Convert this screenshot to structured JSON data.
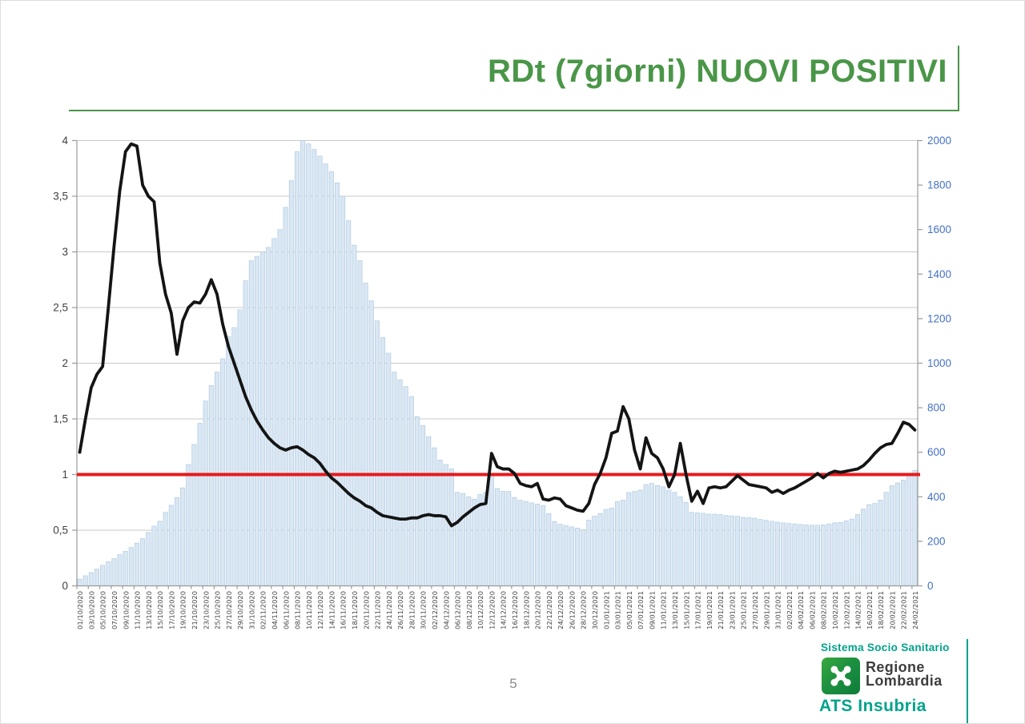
{
  "title": {
    "text": "RDt (7giorni) NUOVI POSITIVI"
  },
  "page": {
    "number": "5"
  },
  "footer_logo": {
    "line1": "Sistema Socio Sanitario",
    "brand": "Regione<br>Lombardia",
    "brand_line1": "Regione",
    "brand_line2": "Lombardia",
    "line2": "ATS Insubria"
  },
  "colors": {
    "title_green": "#4a9648",
    "teal": "#00a38b",
    "bar_fill": "#dae7f3",
    "bar_stroke": "#b3cde3",
    "rdt_line": "#141414",
    "threshold": "#e8191c",
    "grid": "#c8c8c8",
    "axis": "#9a9a9a",
    "left_axis_text": "#404040",
    "right_axis_text": "#4472c4",
    "x_label_text": "#3f3f3f"
  },
  "chart_data": {
    "type": "bar",
    "combo": [
      "bar",
      "line"
    ],
    "title": "",
    "xlabel": "",
    "ylabel_left": "",
    "ylabel_right": "",
    "grid": true,
    "legend": "none",
    "left_axis": {
      "min": 0,
      "max": 4,
      "step": 0.5,
      "tick_labels": [
        "0",
        "0,5",
        "1",
        "1,5",
        "2",
        "2,5",
        "3",
        "3,5",
        "4"
      ]
    },
    "right_axis": {
      "min": 0,
      "max": 2000,
      "step": 200,
      "tick_labels": [
        "0",
        "200",
        "400",
        "600",
        "800",
        "1000",
        "1200",
        "1400",
        "1600",
        "1800",
        "2000"
      ]
    },
    "threshold_line": {
      "value": 1.0,
      "axis": "left"
    },
    "x_start_date": "01/10/2020",
    "x_end_date": "24/02/2021",
    "x_label_every_n_days": 2,
    "x_labels": [
      "01/10/2020",
      "03/10/2020",
      "05/10/2020",
      "07/10/2020",
      "09/10/2020",
      "11/10/2020",
      "13/10/2020",
      "15/10/2020",
      "17/10/2020",
      "19/10/2020",
      "21/10/2020",
      "23/10/2020",
      "25/10/2020",
      "27/10/2020",
      "29/10/2020",
      "31/10/2020",
      "02/11/2020",
      "04/11/2020",
      "06/11/2020",
      "08/11/2020",
      "10/11/2020",
      "12/11/2020",
      "14/11/2020",
      "16/11/2020",
      "18/11/2020",
      "20/11/2020",
      "22/11/2020",
      "24/11/2020",
      "26/11/2020",
      "28/11/2020",
      "30/11/2020",
      "02/12/2020",
      "04/12/2020",
      "06/12/2020",
      "08/12/2020",
      "10/12/2020",
      "12/12/2020",
      "14/12/2020",
      "16/12/2020",
      "18/12/2020",
      "20/12/2020",
      "22/12/2020",
      "24/12/2020",
      "26/12/2020",
      "28/12/2020",
      "30/12/2020",
      "01/01/2021",
      "03/01/2021",
      "05/01/2021",
      "07/01/2021",
      "09/01/2021",
      "11/01/2021",
      "13/01/2021",
      "15/01/2021",
      "17/01/2021",
      "19/01/2021",
      "21/01/2021",
      "23/01/2021",
      "25/01/2021",
      "27/01/2021",
      "29/01/2021",
      "31/01/2021",
      "02/02/2021",
      "04/02/2021",
      "06/02/2021",
      "08/02/2021",
      "10/02/2021",
      "12/02/2021",
      "14/02/2021",
      "16/02/2021",
      "18/02/2021",
      "20/02/2021",
      "22/02/2021",
      "24/02/2021"
    ],
    "series": [
      {
        "name": "nuovi-positivi-bars",
        "type": "bar",
        "axis": "right",
        "values": [
          30,
          45,
          60,
          75,
          92,
          108,
          122,
          140,
          155,
          172,
          192,
          212,
          240,
          268,
          290,
          330,
          362,
          396,
          440,
          545,
          635,
          730,
          830,
          900,
          960,
          1020,
          1120,
          1160,
          1240,
          1370,
          1460,
          1480,
          1500,
          1520,
          1560,
          1600,
          1700,
          1820,
          1950,
          2000,
          1985,
          1960,
          1930,
          1895,
          1860,
          1810,
          1750,
          1640,
          1530,
          1460,
          1360,
          1280,
          1190,
          1115,
          1045,
          960,
          925,
          895,
          850,
          760,
          720,
          670,
          620,
          565,
          545,
          525,
          420,
          415,
          400,
          390,
          410,
          420,
          497,
          437,
          425,
          424,
          397,
          385,
          379,
          373,
          367,
          361,
          325,
          289,
          277,
          271,
          265,
          259,
          253,
          295,
          313,
          325,
          343,
          349,
          379,
          385,
          419,
          424,
          430,
          455,
          460,
          450,
          445,
          430,
          420,
          400,
          375,
          330,
          328,
          326,
          322,
          322,
          320,
          316,
          314,
          312,
          308,
          306,
          304,
          298,
          294,
          290,
          286,
          283,
          280,
          278,
          276,
          274,
          272,
          272,
          274,
          278,
          283,
          285,
          292,
          300,
          320,
          345,
          365,
          370,
          385,
          420,
          450,
          462,
          475,
          495,
          518
        ]
      },
      {
        "name": "rdt-7giorni-line",
        "type": "line",
        "axis": "left",
        "values": [
          1.2,
          1.5,
          1.78,
          1.9,
          1.97,
          2.5,
          3.05,
          3.55,
          3.9,
          3.97,
          3.95,
          3.6,
          3.5,
          3.45,
          2.9,
          2.62,
          2.45,
          2.08,
          2.38,
          2.5,
          2.55,
          2.54,
          2.62,
          2.75,
          2.62,
          2.35,
          2.15,
          2.0,
          1.85,
          1.7,
          1.58,
          1.48,
          1.4,
          1.33,
          1.28,
          1.24,
          1.22,
          1.24,
          1.25,
          1.22,
          1.18,
          1.15,
          1.1,
          1.03,
          0.97,
          0.93,
          0.88,
          0.83,
          0.79,
          0.76,
          0.72,
          0.7,
          0.66,
          0.63,
          0.62,
          0.61,
          0.6,
          0.6,
          0.61,
          0.61,
          0.63,
          0.64,
          0.63,
          0.63,
          0.62,
          0.54,
          0.57,
          0.62,
          0.66,
          0.7,
          0.73,
          0.74,
          1.19,
          1.07,
          1.05,
          1.05,
          1.01,
          0.92,
          0.9,
          0.89,
          0.92,
          0.78,
          0.77,
          0.79,
          0.78,
          0.72,
          0.7,
          0.68,
          0.67,
          0.74,
          0.91,
          1.01,
          1.15,
          1.37,
          1.39,
          1.61,
          1.5,
          1.22,
          1.05,
          1.33,
          1.19,
          1.15,
          1.05,
          0.89,
          1.0,
          1.28,
          1.0,
          0.76,
          0.85,
          0.74,
          0.88,
          0.89,
          0.88,
          0.89,
          0.94,
          0.99,
          0.95,
          0.91,
          0.9,
          0.89,
          0.88,
          0.84,
          0.86,
          0.83,
          0.86,
          0.88,
          0.91,
          0.94,
          0.97,
          1.01,
          0.97,
          1.01,
          1.03,
          1.02,
          1.03,
          1.04,
          1.05,
          1.08,
          1.13,
          1.19,
          1.24,
          1.27,
          1.28,
          1.37,
          1.47,
          1.45,
          1.4
        ]
      }
    ]
  }
}
